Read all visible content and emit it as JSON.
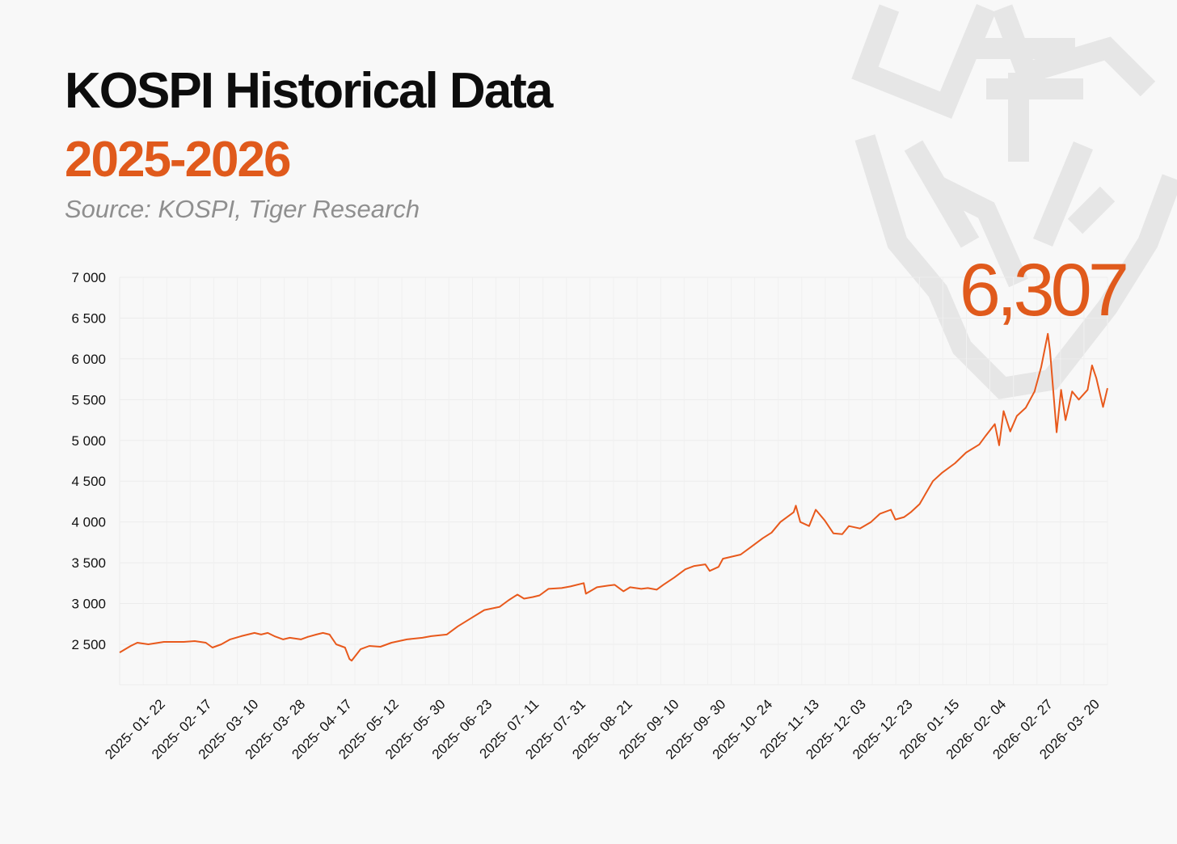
{
  "header": {
    "title": "KOSPI Historical Data",
    "subtitle": "2025-2026",
    "source": "Source: KOSPI, Tiger Research"
  },
  "colors": {
    "accent": "#e05a1c",
    "line": "#e8591c",
    "grid": "#ececec",
    "background": "#f8f8f8"
  },
  "watermark": {
    "icon": "tiger-logo-icon"
  },
  "chart_data": {
    "type": "line",
    "title": "KOSPI Historical Data",
    "subtitle": "2025-2026",
    "xlabel": "",
    "ylabel": "",
    "ylim": [
      2000,
      7000
    ],
    "y_ticks": [
      {
        "value": 2500,
        "label": "2 500"
      },
      {
        "value": 3000,
        "label": "3 000"
      },
      {
        "value": 3500,
        "label": "3 500"
      },
      {
        "value": 4000,
        "label": "4 000"
      },
      {
        "value": 4500,
        "label": "4 500"
      },
      {
        "value": 5000,
        "label": "5 000"
      },
      {
        "value": 5500,
        "label": "5 500"
      },
      {
        "value": 6000,
        "label": "6 000"
      },
      {
        "value": 6500,
        "label": "6 500"
      },
      {
        "value": 7000,
        "label": "7 000"
      }
    ],
    "x_ticks": [
      "2025- 01- 22",
      "2025- 02- 17",
      "2025- 03- 10",
      "2025- 03- 28",
      "2025- 04- 17",
      "2025- 05- 12",
      "2025- 05- 30",
      "2025- 06- 23",
      "2025- 07- 11",
      "2025- 07- 31",
      "2025- 08- 21",
      "2025- 09- 10",
      "2025- 09- 30",
      "2025- 10- 24",
      "2025- 11- 13",
      "2025- 12- 03",
      "2025- 12- 23",
      "2026- 01- 15",
      "2026- 02- 04",
      "2026- 02- 27",
      "2026- 03- 20"
    ],
    "x_range": [
      "2025-01-02",
      "2026-03-25"
    ],
    "grid": true,
    "legend": "none",
    "annotation": {
      "label": "6,307",
      "value": 6307,
      "date": "2026-02-26"
    },
    "series": [
      {
        "name": "KOSPI",
        "points": [
          [
            "2025-01-02",
            2400
          ],
          [
            "2025-01-07",
            2480
          ],
          [
            "2025-01-10",
            2520
          ],
          [
            "2025-01-15",
            2500
          ],
          [
            "2025-01-22",
            2530
          ],
          [
            "2025-01-31",
            2530
          ],
          [
            "2025-02-05",
            2540
          ],
          [
            "2025-02-10",
            2520
          ],
          [
            "2025-02-13",
            2460
          ],
          [
            "2025-02-17",
            2500
          ],
          [
            "2025-02-21",
            2560
          ],
          [
            "2025-02-26",
            2600
          ],
          [
            "2025-03-04",
            2640
          ],
          [
            "2025-03-07",
            2620
          ],
          [
            "2025-03-10",
            2640
          ],
          [
            "2025-03-13",
            2600
          ],
          [
            "2025-03-17",
            2560
          ],
          [
            "2025-03-20",
            2580
          ],
          [
            "2025-03-25",
            2560
          ],
          [
            "2025-03-28",
            2590
          ],
          [
            "2025-04-01",
            2620
          ],
          [
            "2025-04-04",
            2640
          ],
          [
            "2025-04-07",
            2620
          ],
          [
            "2025-04-10",
            2500
          ],
          [
            "2025-04-14",
            2460
          ],
          [
            "2025-04-16",
            2320
          ],
          [
            "2025-04-17",
            2300
          ],
          [
            "2025-04-21",
            2440
          ],
          [
            "2025-04-25",
            2480
          ],
          [
            "2025-04-30",
            2470
          ],
          [
            "2025-05-05",
            2520
          ],
          [
            "2025-05-12",
            2560
          ],
          [
            "2025-05-19",
            2580
          ],
          [
            "2025-05-23",
            2600
          ],
          [
            "2025-05-30",
            2620
          ],
          [
            "2025-06-04",
            2720
          ],
          [
            "2025-06-10",
            2820
          ],
          [
            "2025-06-16",
            2920
          ],
          [
            "2025-06-23",
            2960
          ],
          [
            "2025-06-27",
            3040
          ],
          [
            "2025-07-01",
            3110
          ],
          [
            "2025-07-04",
            3060
          ],
          [
            "2025-07-08",
            3080
          ],
          [
            "2025-07-11",
            3100
          ],
          [
            "2025-07-15",
            3180
          ],
          [
            "2025-07-21",
            3190
          ],
          [
            "2025-07-25",
            3210
          ],
          [
            "2025-07-31",
            3250
          ],
          [
            "2025-08-01",
            3120
          ],
          [
            "2025-08-06",
            3200
          ],
          [
            "2025-08-11",
            3220
          ],
          [
            "2025-08-14",
            3230
          ],
          [
            "2025-08-18",
            3150
          ],
          [
            "2025-08-21",
            3200
          ],
          [
            "2025-08-26",
            3180
          ],
          [
            "2025-08-29",
            3190
          ],
          [
            "2025-09-02",
            3170
          ],
          [
            "2025-09-05",
            3230
          ],
          [
            "2025-09-10",
            3320
          ],
          [
            "2025-09-15",
            3420
          ],
          [
            "2025-09-19",
            3460
          ],
          [
            "2025-09-24",
            3480
          ],
          [
            "2025-09-26",
            3400
          ],
          [
            "2025-09-30",
            3450
          ],
          [
            "2025-10-02",
            3550
          ],
          [
            "2025-10-10",
            3600
          ],
          [
            "2025-10-15",
            3700
          ],
          [
            "2025-10-20",
            3800
          ],
          [
            "2025-10-24",
            3870
          ],
          [
            "2025-10-28",
            4000
          ],
          [
            "2025-11-03",
            4120
          ],
          [
            "2025-11-04",
            4200
          ],
          [
            "2025-11-06",
            4000
          ],
          [
            "2025-11-10",
            3950
          ],
          [
            "2025-11-13",
            4150
          ],
          [
            "2025-11-17",
            4020
          ],
          [
            "2025-11-21",
            3860
          ],
          [
            "2025-11-25",
            3850
          ],
          [
            "2025-11-28",
            3950
          ],
          [
            "2025-12-03",
            3920
          ],
          [
            "2025-12-08",
            4000
          ],
          [
            "2025-12-12",
            4100
          ],
          [
            "2025-12-17",
            4150
          ],
          [
            "2025-12-19",
            4030
          ],
          [
            "2025-12-23",
            4060
          ],
          [
            "2025-12-26",
            4120
          ],
          [
            "2025-12-30",
            4220
          ],
          [
            "2026-01-05",
            4500
          ],
          [
            "2026-01-09",
            4600
          ],
          [
            "2026-01-15",
            4720
          ],
          [
            "2026-01-20",
            4850
          ],
          [
            "2026-01-26",
            4950
          ],
          [
            "2026-01-29",
            5060
          ],
          [
            "2026-02-02",
            5200
          ],
          [
            "2026-02-04",
            4940
          ],
          [
            "2026-02-06",
            5360
          ],
          [
            "2026-02-09",
            5110
          ],
          [
            "2026-02-12",
            5300
          ],
          [
            "2026-02-16",
            5400
          ],
          [
            "2026-02-20",
            5600
          ],
          [
            "2026-02-23",
            5900
          ],
          [
            "2026-02-26",
            6307
          ],
          [
            "2026-02-27",
            6100
          ],
          [
            "2026-03-02",
            5100
          ],
          [
            "2026-03-04",
            5620
          ],
          [
            "2026-03-06",
            5250
          ],
          [
            "2026-03-09",
            5600
          ],
          [
            "2026-03-12",
            5500
          ],
          [
            "2026-03-16",
            5620
          ],
          [
            "2026-03-18",
            5920
          ],
          [
            "2026-03-20",
            5760
          ],
          [
            "2026-03-23",
            5410
          ],
          [
            "2026-03-25",
            5640
          ]
        ]
      }
    ]
  }
}
